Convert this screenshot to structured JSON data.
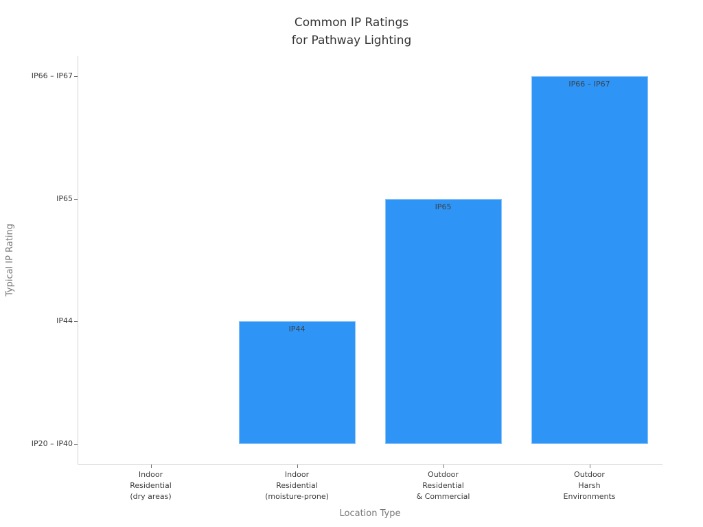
{
  "chart_data": {
    "type": "bar",
    "title": "Common IP Ratings for Pathway Lighting",
    "title_lines": [
      "Common IP Ratings",
      "for Pathway Lighting"
    ],
    "xlabel": "Location Type",
    "ylabel": "Typical IP Rating",
    "categories": [
      [
        "Indoor",
        "Residential",
        "(dry areas)"
      ],
      [
        "Indoor",
        "Residential",
        "(moisture-prone)"
      ],
      [
        "Outdoor",
        "Residential",
        "& Commercial"
      ],
      [
        "Outdoor",
        "Harsh",
        "Environments"
      ]
    ],
    "ytick_labels": [
      "IP20 – IP40",
      "IP44",
      "IP65",
      "IP66 – IP67"
    ],
    "values": [
      "IP20 – IP40",
      "IP44",
      "IP65",
      "IP66 – IP67"
    ],
    "values_ordinal": [
      0,
      1,
      2,
      3
    ],
    "bar_labels": [
      "",
      "IP44",
      "IP65",
      "IP66 – IP67"
    ],
    "bar_color": "#2e94f5",
    "grid": false,
    "legend_position": "none",
    "ylim_ordinal": [
      -0.17,
      3.17
    ]
  },
  "colors": {
    "background": "#ffffff",
    "bar": "#2e94f5",
    "title_text": "#333333",
    "tick_text": "#3b3b3b",
    "axis_title_text": "#787878",
    "bar_label_text": "#3c4248",
    "spine": "#d2d2d2",
    "tick_mark": "#6e6e6e"
  }
}
